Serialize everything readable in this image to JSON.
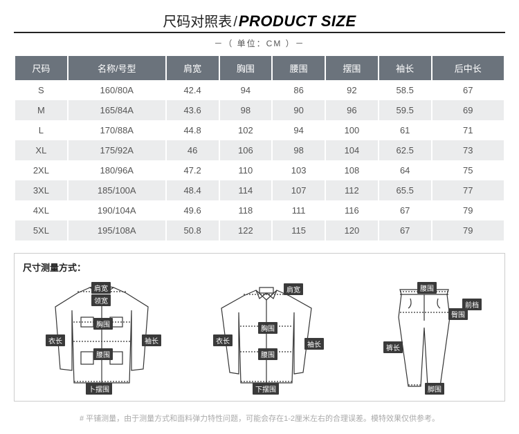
{
  "title": {
    "cn": "尺码对照表",
    "sep": "/",
    "en": "PRODUCT SIZE"
  },
  "unit": "－（ 单位：CM ）－",
  "table": {
    "headers": [
      "尺码",
      "名称/号型",
      "肩宽",
      "胸围",
      "腰围",
      "摆围",
      "袖长",
      "后中长"
    ],
    "rows": [
      [
        "S",
        "160/80A",
        "42.4",
        "94",
        "86",
        "92",
        "58.5",
        "67"
      ],
      [
        "M",
        "165/84A",
        "43.6",
        "98",
        "90",
        "96",
        "59.5",
        "69"
      ],
      [
        "L",
        "170/88A",
        "44.8",
        "102",
        "94",
        "100",
        "61",
        "71"
      ],
      [
        "XL",
        "175/92A",
        "46",
        "106",
        "98",
        "104",
        "62.5",
        "73"
      ],
      [
        "2XL",
        "180/96A",
        "47.2",
        "110",
        "103",
        "108",
        "64",
        "75"
      ],
      [
        "3XL",
        "185/100A",
        "48.4",
        "114",
        "107",
        "112",
        "65.5",
        "77"
      ],
      [
        "4XL",
        "190/104A",
        "49.6",
        "118",
        "111",
        "116",
        "67",
        "79"
      ],
      [
        "5XL",
        "195/108A",
        "50.8",
        "122",
        "115",
        "120",
        "67",
        "79"
      ]
    ],
    "header_bg": "#6b737c",
    "header_color": "#ffffff",
    "alt_row_bg": "#ebeced",
    "text_color": "#555555"
  },
  "measure": {
    "title": "尺寸测量方式：",
    "jacket": {
      "labels": {
        "shoulder": "肩宽",
        "collar": "领宽",
        "chest": "胸围",
        "length": "衣长",
        "waist": "腰围",
        "sleeve": "袖长",
        "hem": "卜摆围"
      }
    },
    "shirt": {
      "labels": {
        "shoulder": "肩宽",
        "chest": "胸围",
        "length": "衣长",
        "waist": "腰围",
        "sleeve": "袖长",
        "hem": "下摆围"
      }
    },
    "pants": {
      "labels": {
        "waist": "腰围",
        "hip": "臀围",
        "rise": "前档",
        "length": "裤长",
        "cuff": "脚围"
      }
    }
  },
  "footnote": "# 平铺测量，由于测量方式和面料弹力特性问题，可能会存在1-2厘米左右的合理误差。模特效果仅供参考。",
  "colors": {
    "tag_bg": "#3a3a3a",
    "border": "#cccccc",
    "footnote": "#aaaaaa"
  }
}
